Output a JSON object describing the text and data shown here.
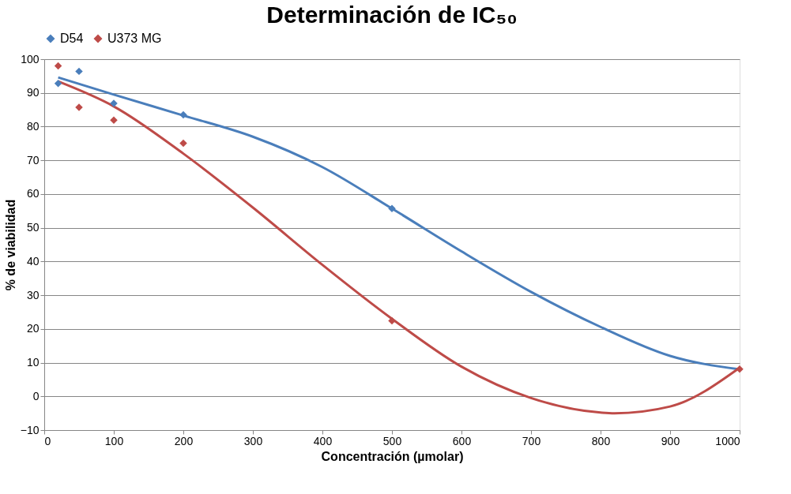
{
  "chart_data": {
    "type": "scatter",
    "title": "Determinación de IC₅₀",
    "xlabel": "Concentración (µmolar)",
    "ylabel": "% de viabilidad",
    "x": [
      20,
      50,
      100,
      200,
      500,
      1000
    ],
    "series": [
      {
        "name": "D54",
        "color": "#4a7ebb",
        "values": [
          92.8,
          96.4,
          86.9,
          83.5,
          55.7,
          null
        ]
      },
      {
        "name": "U373 MG",
        "color": "#be4b48",
        "values": [
          98,
          85.7,
          81.9,
          75.1,
          22.4,
          8.1
        ]
      },
      {
        "type": "line",
        "marker": "none",
        "color": "#4a7ebb",
        "x": [
          20,
          100,
          200,
          300,
          400,
          500,
          600,
          700,
          800,
          900,
          1000
        ],
        "values": [
          94.6,
          89.5,
          83.3,
          77,
          68,
          55.7,
          43,
          31,
          20.6,
          12,
          8
        ]
      },
      {
        "type": "line",
        "marker": "none",
        "color": "#be4b48",
        "x": [
          20,
          100,
          200,
          300,
          400,
          500,
          600,
          700,
          800,
          820,
          900,
          1000
        ],
        "values": [
          93.4,
          86,
          72,
          56,
          39,
          23,
          8.8,
          -0.5,
          -4.8,
          -5,
          -3,
          8.5
        ]
      }
    ],
    "xlim": [
      0,
      1000
    ],
    "xticks": [
      0,
      100,
      200,
      300,
      400,
      500,
      600,
      700,
      800,
      900,
      1000
    ],
    "ylim": [
      -10,
      100
    ],
    "yticks": [
      -10,
      0,
      10,
      20,
      30,
      40,
      50,
      60,
      70,
      80,
      90,
      100
    ],
    "grid": "y",
    "legend": "top",
    "marker": "diamond"
  }
}
